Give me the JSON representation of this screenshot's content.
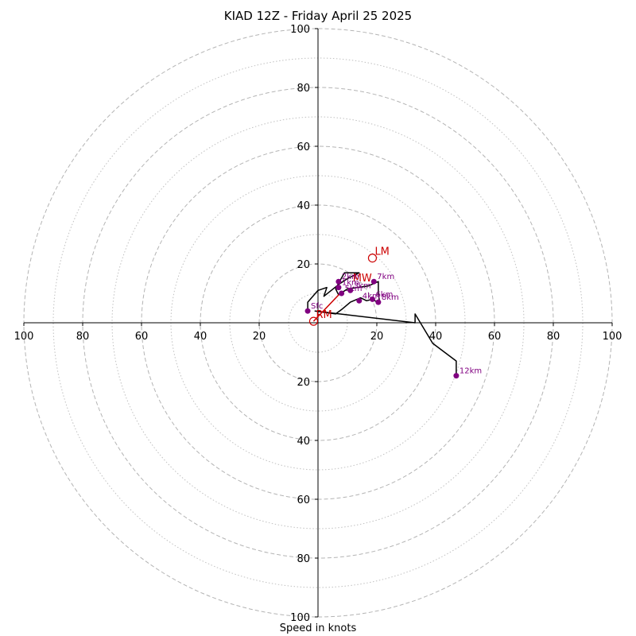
{
  "chart_data": {
    "type": "scatter",
    "title": "KIAD 12Z - Friday April 25 2025",
    "xlabel": "Speed in knots",
    "ylabel": "",
    "xlim": [
      -100,
      100
    ],
    "ylim": [
      -100,
      100
    ],
    "grid": true,
    "ring_ticks": [
      20,
      40,
      60,
      80,
      100
    ],
    "tick_labels": [
      "20",
      "40",
      "60",
      "80",
      "100"
    ],
    "hodograph_trace": {
      "u": [
        -3.5,
        -3.5,
        0,
        3,
        2,
        7,
        10,
        14,
        9,
        7,
        6,
        7,
        10,
        17,
        20.5,
        20.5,
        21,
        18.5,
        16.5,
        14.5,
        11,
        8,
        6,
        -1,
        33,
        33,
        39,
        47,
        47
      ],
      "v": [
        4,
        7,
        11,
        12,
        9,
        13,
        15,
        17,
        17,
        13.5,
        11.5,
        9.5,
        11.5,
        12.5,
        14,
        10,
        6.5,
        8,
        7.5,
        8.5,
        7,
        4.5,
        3,
        4,
        0,
        3,
        -7,
        -13,
        -18
      ]
    },
    "height_markers": [
      {
        "label": "Sfc",
        "u": -3.5,
        "v": 4
      },
      {
        "label": "2km",
        "u": 7,
        "v": 14
      },
      {
        "label": "1km",
        "u": 7,
        "v": 12
      },
      {
        "label": "3km",
        "u": 11,
        "v": 11
      },
      {
        "label": "4km",
        "u": 14,
        "v": 7.5
      },
      {
        "label": "5km",
        "u": 8,
        "v": 10
      },
      {
        "label": "6km",
        "u": 18.5,
        "v": 8
      },
      {
        "label": "7km",
        "u": 19,
        "v": 14
      },
      {
        "label": "8km",
        "u": 20.5,
        "v": 7
      },
      {
        "label": "12km",
        "u": 47,
        "v": -18
      }
    ],
    "storm_motion": {
      "line": {
        "u": [
          -1.5,
          8
        ],
        "v": [
          0.5,
          10.5
        ]
      },
      "markers": [
        {
          "label": "RM",
          "u": -1.5,
          "v": 0.5
        },
        {
          "label": "LM",
          "u": 18.5,
          "v": 22
        },
        {
          "label": "MW",
          "u": 11,
          "v": 13
        }
      ]
    },
    "colors": {
      "trace": "#000000",
      "height_markers": "#800080",
      "storm_motion": "#cc0000",
      "grid": "#b0b0b0"
    }
  }
}
